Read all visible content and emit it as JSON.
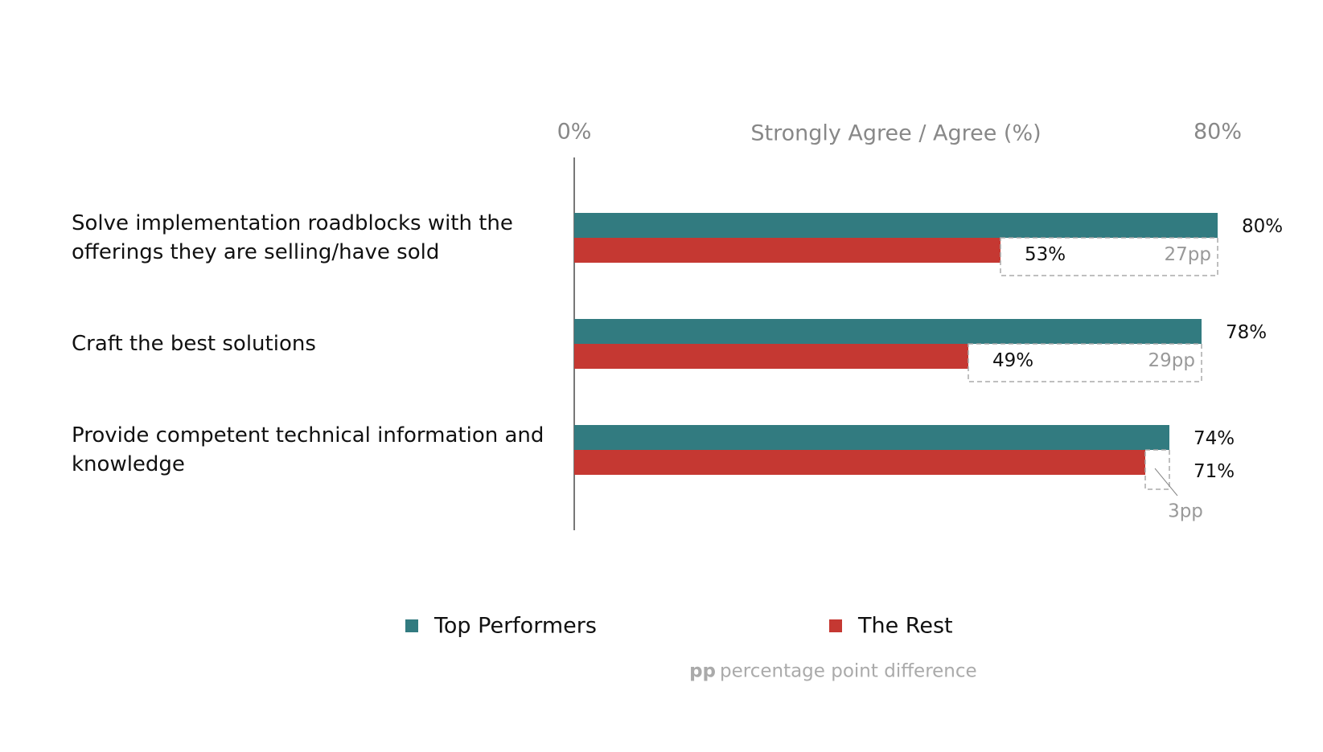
{
  "chart_data": {
    "type": "bar",
    "orientation": "horizontal",
    "x_axis_label": "Strongly Agree / Agree (%)",
    "categories": [
      "Solve implementation roadblocks with the offerings they are selling/have sold",
      "Craft the best solutions",
      "Provide competent technical information and knowledge"
    ],
    "series": [
      {
        "name": "Top Performers",
        "color": "#327b80",
        "values": [
          80,
          78,
          74
        ],
        "value_labels": [
          "80%",
          "78%",
          "74%"
        ]
      },
      {
        "name": "The Rest",
        "color": "#c53832",
        "values": [
          53,
          49,
          71
        ],
        "value_labels": [
          "53%",
          "49%",
          "71%"
        ]
      }
    ],
    "differences": {
      "values": [
        27,
        29,
        3
      ],
      "value_labels": [
        "27pp",
        "29pp",
        "3pp"
      ]
    },
    "xlim": [
      0,
      80
    ],
    "xticks": [
      {
        "value": 0,
        "label": "0%"
      },
      {
        "value": 80,
        "label": "80%"
      }
    ],
    "footnote": {
      "abbr": "pp",
      "text": "percentage point difference"
    }
  }
}
